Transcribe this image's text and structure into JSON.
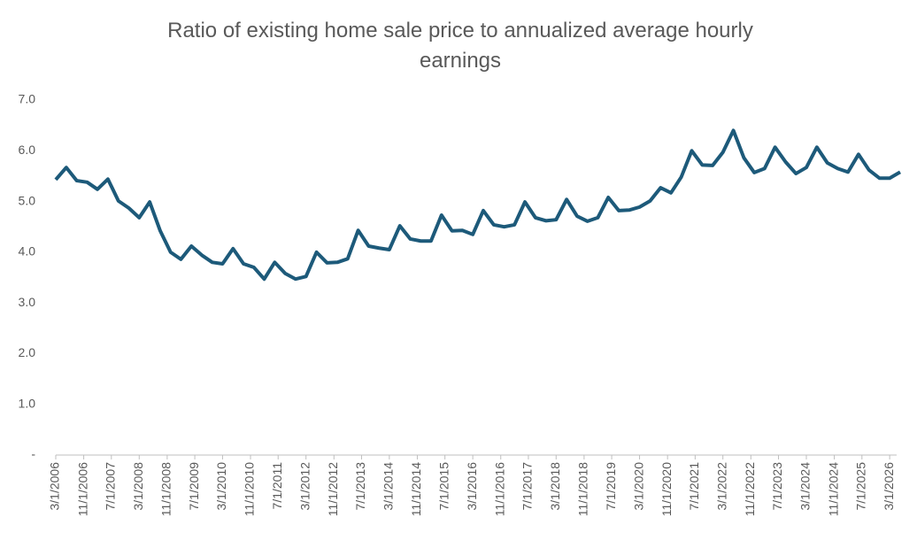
{
  "chart_data": {
    "type": "line",
    "title": "Ratio of existing home sale price to annualized average hourly earnings",
    "x": [
      "3/1/2006",
      "6/1/2006",
      "9/1/2006",
      "12/1/2006",
      "3/1/2007",
      "6/1/2007",
      "9/1/2007",
      "12/1/2007",
      "3/1/2008",
      "6/1/2008",
      "9/1/2008",
      "12/1/2008",
      "3/1/2009",
      "6/1/2009",
      "9/1/2009",
      "12/1/2009",
      "3/1/2010",
      "6/1/2010",
      "9/1/2010",
      "12/1/2010",
      "3/1/2011",
      "6/1/2011",
      "9/1/2011",
      "12/1/2011",
      "3/1/2012",
      "6/1/2012",
      "9/1/2012",
      "12/1/2012",
      "3/1/2013",
      "6/1/2013",
      "9/1/2013",
      "12/1/2013",
      "3/1/2014",
      "6/1/2014",
      "9/1/2014",
      "12/1/2014",
      "3/1/2015",
      "6/1/2015",
      "9/1/2015",
      "12/1/2015",
      "3/1/2016",
      "6/1/2016",
      "9/1/2016",
      "12/1/2016",
      "3/1/2017",
      "6/1/2017",
      "9/1/2017",
      "12/1/2017",
      "3/1/2018",
      "6/1/2018",
      "9/1/2018",
      "12/1/2018",
      "3/1/2019",
      "6/1/2019",
      "9/1/2019",
      "12/1/2019",
      "3/1/2020",
      "6/1/2020",
      "9/1/2020",
      "12/1/2020",
      "3/1/2021",
      "6/1/2021",
      "9/1/2021",
      "12/1/2021",
      "3/1/2022",
      "6/1/2022",
      "9/1/2022",
      "12/1/2022",
      "3/1/2023",
      "6/1/2023",
      "9/1/2023",
      "12/1/2023",
      "3/1/2024",
      "6/1/2024",
      "9/1/2024",
      "12/1/2024",
      "3/1/2025",
      "6/1/2025",
      "9/1/2025",
      "12/1/2025",
      "3/1/2026",
      "6/1/2026"
    ],
    "series": [
      {
        "color": "#1d5a7a",
        "values": [
          5.43,
          5.67,
          5.41,
          5.38,
          5.24,
          5.44,
          5.01,
          4.87,
          4.68,
          4.99,
          4.42,
          4.0,
          3.86,
          4.12,
          3.94,
          3.8,
          3.77,
          4.07,
          3.77,
          3.7,
          3.47,
          3.8,
          3.58,
          3.47,
          3.52,
          4.0,
          3.79,
          3.8,
          3.87,
          4.43,
          4.12,
          4.08,
          4.05,
          4.52,
          4.26,
          4.22,
          4.22,
          4.73,
          4.42,
          4.43,
          4.35,
          4.82,
          4.54,
          4.5,
          4.54,
          4.99,
          4.68,
          4.62,
          4.64,
          5.04,
          4.71,
          4.61,
          4.68,
          5.08,
          4.82,
          4.83,
          4.89,
          5.01,
          5.27,
          5.17,
          5.48,
          6.0,
          5.72,
          5.71,
          5.97,
          6.4,
          5.86,
          5.57,
          5.65,
          6.07,
          5.78,
          5.55,
          5.67,
          6.07,
          5.76,
          5.65,
          5.58,
          5.93,
          5.62,
          5.46,
          5.46,
          5.58
        ]
      }
    ],
    "xlim": [
      "3/1/2006",
      "6/1/2026"
    ],
    "xticks": [
      "3/1/2006",
      "11/1/2006",
      "7/1/2007",
      "3/1/2008",
      "11/1/2008",
      "7/1/2009",
      "3/1/2010",
      "11/1/2010",
      "7/1/2011",
      "3/1/2012",
      "11/1/2012",
      "7/1/2013",
      "3/1/2014",
      "11/1/2014",
      "7/1/2015",
      "3/1/2016",
      "11/1/2016",
      "7/1/2017",
      "3/1/2018",
      "11/1/2018",
      "7/1/2019",
      "3/1/2020",
      "11/1/2020",
      "7/1/2021",
      "3/1/2022",
      "11/1/2022",
      "7/1/2023",
      "3/1/2024",
      "11/1/2024",
      "7/1/2025",
      "3/1/2026"
    ],
    "ylim": [
      0,
      7
    ],
    "yticks": [
      {
        "value": 0,
        "label": "-"
      },
      {
        "value": 1,
        "label": "1.0"
      },
      {
        "value": 2,
        "label": "2.0"
      },
      {
        "value": 3,
        "label": "3.0"
      },
      {
        "value": 4,
        "label": "4.0"
      },
      {
        "value": 5,
        "label": "5.0"
      },
      {
        "value": 6,
        "label": "6.0"
      },
      {
        "value": 7,
        "label": "7.0"
      }
    ],
    "grid": false
  }
}
